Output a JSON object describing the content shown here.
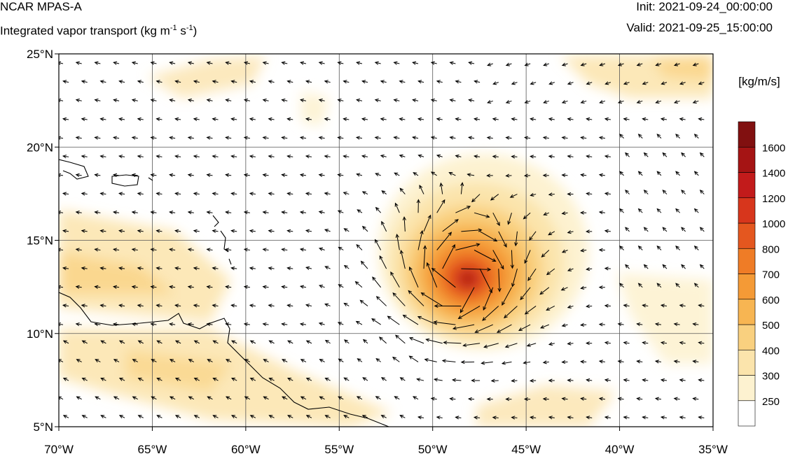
{
  "header": {
    "model": "NCAR MPAS-A",
    "field_name": "Integrated vapor transport (kg m",
    "field_sup1": "-1",
    "field_mid": " s",
    "field_sup2": "-1",
    "field_end": ")",
    "init": "Init: 2021-09-24_00:00:00",
    "valid": "Valid: 2021-09-25_15:00:00"
  },
  "map": {
    "lon_range": [
      -70,
      -35
    ],
    "lat_range": [
      5,
      25
    ],
    "lon_ticks": [
      {
        "value": -70,
        "label": "70°W"
      },
      {
        "value": -65,
        "label": "65°W"
      },
      {
        "value": -60,
        "label": "60°W"
      },
      {
        "value": -55,
        "label": "55°W"
      },
      {
        "value": -50,
        "label": "50°W"
      },
      {
        "value": -45,
        "label": "45°W"
      },
      {
        "value": -40,
        "label": "40°W"
      },
      {
        "value": -35,
        "label": "35°W"
      }
    ],
    "lat_ticks": [
      {
        "value": 5,
        "label": "5°N"
      },
      {
        "value": 10,
        "label": "10°N"
      },
      {
        "value": 15,
        "label": "15°N"
      },
      {
        "value": 20,
        "label": "20°N"
      },
      {
        "value": 25,
        "label": "25°N"
      }
    ],
    "grid_lines": true,
    "cyclone_center": {
      "lon": -48.5,
      "lat": 12.8
    },
    "colorbar": {
      "title": "[kg/m/s]",
      "levels": [
        250,
        300,
        400,
        500,
        600,
        700,
        800,
        1000,
        1200,
        1400,
        1600
      ],
      "colors": [
        "#ffffff",
        "#fdf2d0",
        "#fbe4ac",
        "#f9d07f",
        "#f7b552",
        "#f49a36",
        "#ef7c26",
        "#e4571f",
        "#d7361c",
        "#c21b1b",
        "#a51414",
        "#811010"
      ]
    }
  }
}
